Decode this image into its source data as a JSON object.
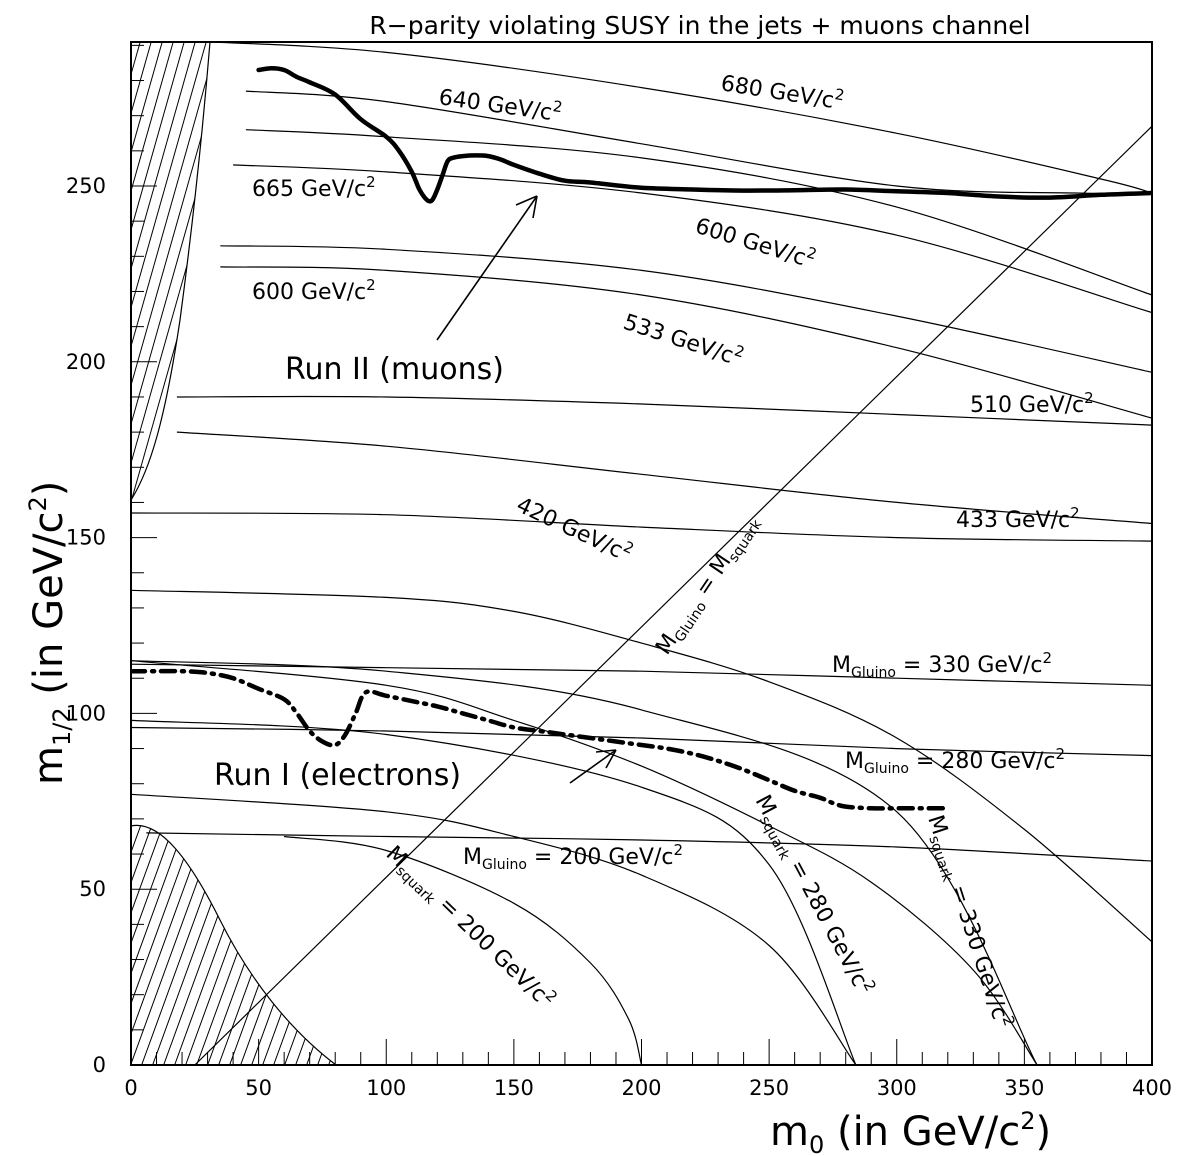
{
  "chart_data": {
    "type": "line",
    "title": "R−parity violating SUSY in the jets + muons channel",
    "xlabel_main": "m",
    "xlabel_sub": "0",
    "xlabel_rest": " (in GeV/c",
    "xlabel_sup": "2",
    "xlabel_end": ")",
    "ylabel_main": "m",
    "ylabel_sub": "1/2",
    "ylabel_rest": " (in GeV/c",
    "ylabel_sup": "2",
    "ylabel_end": ")",
    "xlim": [
      0,
      400
    ],
    "ylim": [
      0,
      290
    ],
    "x_ticks": [
      0,
      50,
      100,
      150,
      200,
      250,
      300,
      350,
      400
    ],
    "y_ticks": [
      0,
      50,
      100,
      150,
      200,
      250
    ],
    "x_tick_labels": [
      "0",
      "50",
      "100",
      "150",
      "200",
      "250",
      "300",
      "350",
      "400"
    ],
    "y_tick_labels": [
      "0",
      "50",
      "100",
      "150",
      "200",
      "250"
    ],
    "series": [
      {
        "name": "Run II (muons)",
        "style": "thick-solid",
        "x": [
          50,
          55,
          60,
          65,
          70,
          80,
          90,
          100,
          105,
          110,
          113,
          116,
          118,
          120,
          122,
          124,
          126,
          130,
          135,
          140,
          145,
          150,
          160,
          170,
          180,
          200,
          220,
          240,
          260,
          280,
          300,
          320,
          340,
          360,
          380,
          400
        ],
        "y": [
          283,
          283.5,
          283,
          281,
          279.5,
          276,
          269,
          264,
          260,
          254,
          249,
          246,
          246,
          249,
          253,
          257,
          258,
          258.5,
          258.7,
          258.5,
          257.5,
          256,
          253.5,
          251.5,
          251,
          249.5,
          249,
          248.7,
          248.8,
          249,
          248.5,
          248,
          247,
          246.7,
          247.5,
          248
        ]
      },
      {
        "name": "Run I (electrons)",
        "style": "thick-dashdot",
        "x": [
          0,
          10,
          20,
          30,
          40,
          50,
          60,
          65,
          70,
          75,
          80,
          84,
          88,
          92,
          100,
          110,
          120,
          130,
          140,
          150,
          160,
          170,
          180,
          190,
          200,
          210,
          220,
          230,
          240,
          250,
          260,
          270,
          275,
          280,
          290,
          300,
          310,
          320
        ],
        "y": [
          112,
          112,
          112,
          111.5,
          110,
          107,
          104,
          100,
          95,
          92,
          91,
          94,
          100,
          106,
          105,
          103.5,
          102,
          100,
          98,
          96,
          95,
          94,
          93,
          92,
          91,
          90,
          88.5,
          86.5,
          84,
          81,
          78,
          76,
          74.5,
          73.5,
          73,
          73,
          73,
          73
        ]
      }
    ],
    "iso_lines": [
      {
        "label": "680 GeV/c2",
        "kind": "gluino",
        "x": [
          30,
          100,
          200,
          300,
          380,
          400
        ],
        "y": [
          291,
          288,
          278,
          265,
          252,
          248
        ]
      },
      {
        "label": "640 GeV/c2",
        "kind": "gluino",
        "x": [
          45,
          100,
          200,
          300,
          370,
          400
        ],
        "y": [
          277,
          274,
          262,
          250,
          248,
          248
        ]
      },
      {
        "label": "665 GeV/c2",
        "kind": "gluino",
        "x": [
          45,
          100,
          200,
          300,
          400
        ],
        "y": [
          266,
          264,
          258,
          244,
          219
        ]
      },
      {
        "label": "",
        "kind": "gluino",
        "x": [
          40,
          100,
          200,
          300,
          400
        ],
        "y": [
          256,
          254,
          248,
          236,
          214
        ]
      },
      {
        "label": "600 GeV/c2",
        "kind": "gluino",
        "x": [
          35,
          100,
          200,
          300,
          400
        ],
        "y": [
          233,
          232,
          226,
          213,
          197
        ]
      },
      {
        "label": "533 GeV/c2",
        "kind": "gluino",
        "x": [
          35,
          100,
          200,
          300,
          400
        ],
        "y": [
          227,
          226,
          219,
          204,
          184
        ]
      },
      {
        "label": "510 GeV/c2",
        "kind": "gluino",
        "x": [
          18,
          100,
          200,
          300,
          400
        ],
        "y": [
          190,
          190,
          188,
          185,
          182
        ]
      },
      {
        "label": "433 GeV/c2",
        "kind": "gluino",
        "x": [
          18,
          100,
          200,
          300,
          400
        ],
        "y": [
          180,
          176,
          168,
          160,
          154
        ]
      },
      {
        "label": "420 GeV/c2",
        "kind": "gluino",
        "x": [
          0,
          100,
          200,
          300,
          400
        ],
        "y": [
          157,
          156.5,
          153,
          150,
          149
        ]
      },
      {
        "label": "",
        "kind": "gluino",
        "x": [
          0,
          100,
          150,
          200,
          250,
          300,
          350,
          400
        ],
        "y": [
          135,
          133,
          129,
          120,
          109,
          93,
          67,
          35
        ]
      },
      {
        "label": "M_Gluino = 330 GeV/c2",
        "kind": "gluino",
        "x": [
          0,
          100,
          200,
          300,
          400
        ],
        "y": [
          114,
          113,
          112,
          110,
          108
        ]
      },
      {
        "label": "",
        "kind": "gluino",
        "x": [
          0,
          100,
          150,
          200,
          250,
          290,
          330,
          355
        ],
        "y": [
          115,
          108,
          98,
          85,
          68,
          52,
          27,
          0
        ]
      },
      {
        "label": "M_Gluino = 280 GeV/c2",
        "kind": "gluino",
        "x": [
          0,
          100,
          200,
          300,
          400
        ],
        "y": [
          96,
          95,
          93,
          90,
          88
        ]
      },
      {
        "label": "",
        "kind": "gluino",
        "x": [
          0,
          100,
          150,
          200,
          250,
          284
        ],
        "y": [
          77,
          72,
          65,
          54,
          34,
          0
        ]
      },
      {
        "label": "M_Gluino = 200 GeV/c2",
        "kind": "gluino",
        "x": [
          6,
          100,
          200,
          300,
          400
        ],
        "y": [
          66,
          65,
          64,
          62,
          58
        ]
      },
      {
        "label": "M_squark = 200 GeV/c2",
        "kind": "squark",
        "x": [
          60,
          100,
          150,
          180,
          195,
          200
        ],
        "y": [
          65,
          61,
          46,
          29,
          13,
          0
        ]
      },
      {
        "label": "M_squark = 280 GeV/c2",
        "kind": "squark",
        "x": [
          0,
          100,
          200,
          250,
          284
        ],
        "y": [
          98,
          94,
          79,
          57,
          0
        ]
      },
      {
        "label": "M_squark = 330 GeV/c2",
        "kind": "squark",
        "x": [
          0,
          100,
          200,
          300,
          355
        ],
        "y": [
          115,
          112,
          101,
          72,
          0
        ]
      }
    ],
    "diagonal": {
      "label": "M_Gluino = M_squark",
      "x": [
        25,
        400
      ],
      "y": [
        0,
        267
      ]
    },
    "annotations": [
      {
        "text": "680 GeV/c",
        "sup": "2"
      },
      {
        "text": "640 GeV/c",
        "sup": "2"
      },
      {
        "text": "665 GeV/c",
        "sup": "2"
      },
      {
        "text": "600 GeV/c",
        "sup": "2"
      },
      {
        "text": "600 GeV/c",
        "sup": "2"
      },
      {
        "text": "533 GeV/c",
        "sup": "2"
      },
      {
        "text": "510 GeV/c",
        "sup": "2"
      },
      {
        "text": "433 GeV/c",
        "sup": "2"
      },
      {
        "text": "420 GeV/c",
        "sup": "2"
      }
    ],
    "label_run2": "Run II (muons)",
    "label_run1": "Run I (electrons)",
    "label_diagonal_m": "M",
    "label_diagonal_sub1": "Gluino",
    "label_diagonal_eq": " = M",
    "label_diagonal_sub2": "squark",
    "gluino_labels": [
      {
        "m": "M",
        "sub": "Gluino",
        "rest": " = 330 GeV/c",
        "sup": "2"
      },
      {
        "m": "M",
        "sub": "Gluino",
        "rest": " = 280 GeV/c",
        "sup": "2"
      },
      {
        "m": "M",
        "sub": "Gluino",
        "rest": " = 200 GeV/c",
        "sup": "2"
      }
    ],
    "squark_labels": [
      {
        "m": "M",
        "sub": "squark",
        "rest": " = 200 GeV/c",
        "sup": "2"
      },
      {
        "m": "M",
        "sub": "squark",
        "rest": " = 280 GeV/c",
        "sup": "2"
      },
      {
        "m": "M",
        "sub": "squark",
        "rest": " = 330 GeV/c",
        "sup": "2"
      }
    ],
    "excluded_regions": [
      "upper-left hatched",
      "lower-left hatched"
    ],
    "grid": false,
    "colors": {
      "line": "#000000",
      "background": "#ffffff"
    }
  }
}
